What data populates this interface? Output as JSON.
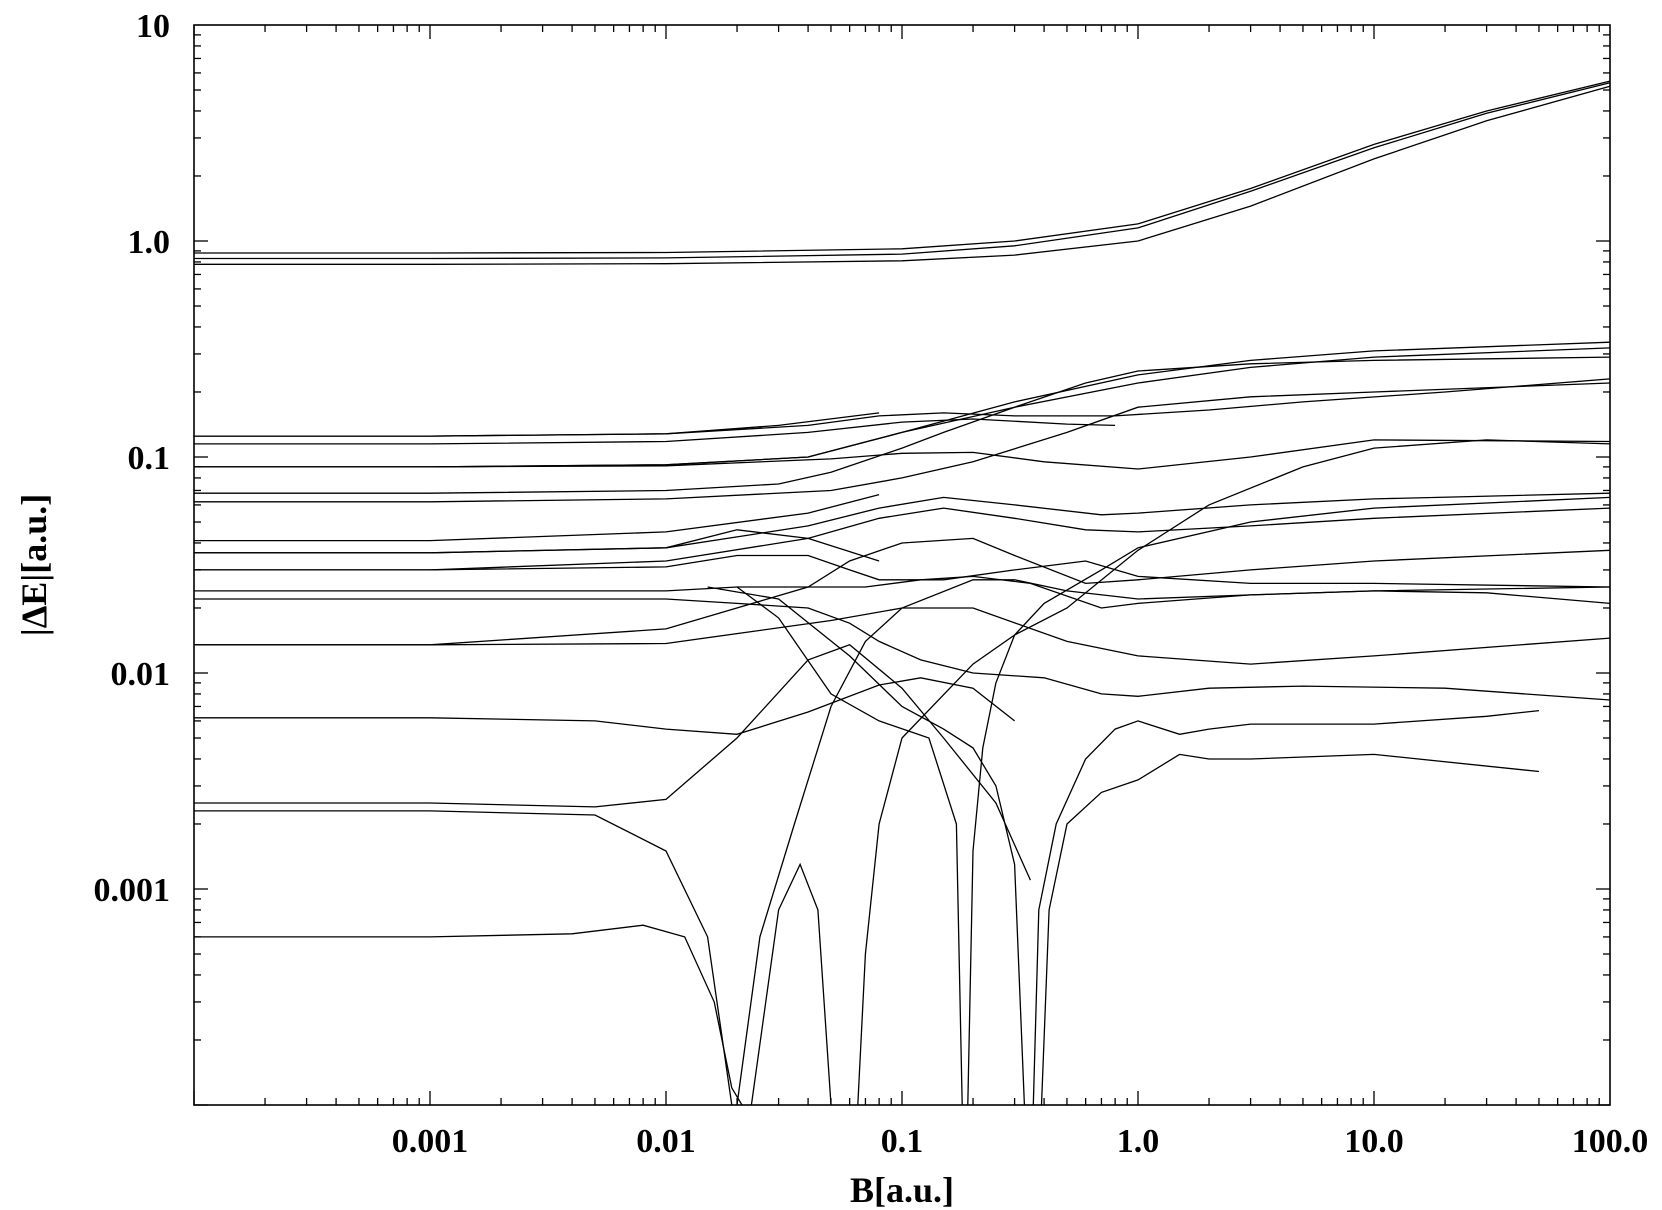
{
  "chart_data": {
    "type": "line",
    "title": "",
    "xlabel": "B[a.u.]",
    "ylabel": "|ΔE|[a.u.]",
    "xscale": "log",
    "yscale": "log",
    "xlim": [
      0.0001,
      100
    ],
    "ylim": [
      0.0001,
      10
    ],
    "x_tick_labels": [
      "0.001",
      "0.01",
      "0.1",
      "1.0",
      "10.0",
      "100.0"
    ],
    "x_tick_values": [
      0.001,
      0.01,
      0.1,
      1,
      10,
      100
    ],
    "y_tick_labels": [
      "0.001",
      "0.01",
      "0.1",
      "1.0",
      "10"
    ],
    "y_tick_values": [
      0.001,
      0.01,
      0.1,
      1,
      10
    ],
    "grid": false,
    "series": [
      {
        "x": [
          0.0001,
          0.001,
          0.01,
          0.1,
          0.3,
          1,
          3,
          10,
          30,
          100
        ],
        "y": [
          0.88,
          0.88,
          0.885,
          0.92,
          1.0,
          1.2,
          1.75,
          2.8,
          4.0,
          5.5
        ]
      },
      {
        "x": [
          0.0001,
          0.001,
          0.01,
          0.1,
          0.3,
          1,
          3,
          10,
          30,
          100
        ],
        "y": [
          0.83,
          0.83,
          0.835,
          0.87,
          0.95,
          1.15,
          1.7,
          2.7,
          3.9,
          5.4
        ]
      },
      {
        "x": [
          0.0001,
          0.001,
          0.01,
          0.1,
          0.3,
          1,
          3,
          10,
          30,
          100
        ],
        "y": [
          0.78,
          0.78,
          0.785,
          0.81,
          0.86,
          1.0,
          1.45,
          2.4,
          3.6,
          5.2
        ]
      },
      {
        "x": [
          0.0001,
          0.001,
          0.01,
          0.03,
          0.08
        ],
        "y": [
          0.125,
          0.125,
          0.128,
          0.14,
          0.16
        ]
      },
      {
        "x": [
          0.0001,
          0.001,
          0.01,
          0.04,
          0.1,
          0.2,
          0.5,
          0.8
        ],
        "y": [
          0.115,
          0.115,
          0.118,
          0.13,
          0.145,
          0.15,
          0.142,
          0.14
        ]
      },
      {
        "x": [
          0.0001,
          0.001,
          0.01,
          0.04,
          0.08,
          0.15,
          0.3,
          0.8,
          2,
          5,
          20,
          100
        ],
        "y": [
          0.125,
          0.125,
          0.128,
          0.14,
          0.155,
          0.16,
          0.155,
          0.155,
          0.165,
          0.18,
          0.2,
          0.23
        ]
      },
      {
        "x": [
          0.0001,
          0.001,
          0.01,
          0.04,
          0.1,
          0.3,
          1,
          3,
          10,
          100
        ],
        "y": [
          0.09,
          0.09,
          0.092,
          0.1,
          0.13,
          0.18,
          0.24,
          0.28,
          0.31,
          0.34
        ]
      },
      {
        "x": [
          0.0001,
          0.001,
          0.01,
          0.04,
          0.1,
          0.3,
          1,
          3,
          10,
          100
        ],
        "y": [
          0.09,
          0.09,
          0.092,
          0.1,
          0.13,
          0.17,
          0.22,
          0.26,
          0.29,
          0.32
        ]
      },
      {
        "x": [
          0.0001,
          0.001,
          0.01,
          0.03,
          0.05,
          0.1,
          0.15,
          0.3,
          0.6,
          1,
          3,
          10,
          100
        ],
        "y": [
          0.068,
          0.068,
          0.07,
          0.075,
          0.085,
          0.11,
          0.13,
          0.17,
          0.22,
          0.25,
          0.27,
          0.28,
          0.29
        ]
      },
      {
        "x": [
          0.0001,
          0.001,
          0.01,
          0.05,
          0.1,
          0.2,
          0.5,
          1,
          3,
          10,
          100
        ],
        "y": [
          0.062,
          0.062,
          0.064,
          0.07,
          0.08,
          0.095,
          0.13,
          0.17,
          0.19,
          0.2,
          0.22
        ]
      },
      {
        "x": [
          0.0001,
          0.001,
          0.01,
          0.05,
          0.1,
          0.2,
          0.4,
          1,
          3,
          10,
          100
        ],
        "y": [
          0.09,
          0.09,
          0.091,
          0.098,
          0.104,
          0.105,
          0.095,
          0.088,
          0.1,
          0.12,
          0.118
        ]
      },
      {
        "x": [
          0.0001,
          0.001,
          0.01,
          0.04,
          0.08
        ],
        "y": [
          0.041,
          0.041,
          0.045,
          0.055,
          0.067
        ]
      },
      {
        "x": [
          0.0001,
          0.001,
          0.01,
          0.04,
          0.08,
          0.15,
          0.3,
          0.7,
          1,
          3,
          10,
          100
        ],
        "y": [
          0.036,
          0.036,
          0.038,
          0.048,
          0.058,
          0.065,
          0.06,
          0.054,
          0.055,
          0.06,
          0.064,
          0.068
        ]
      },
      {
        "x": [
          0.0001,
          0.001,
          0.01,
          0.04,
          0.08,
          0.15,
          0.3,
          0.6,
          1,
          3,
          10,
          100
        ],
        "y": [
          0.03,
          0.03,
          0.033,
          0.042,
          0.052,
          0.058,
          0.052,
          0.046,
          0.045,
          0.048,
          0.052,
          0.058
        ]
      },
      {
        "x": [
          0.0001,
          0.001,
          0.01,
          0.02,
          0.04,
          0.08
        ],
        "y": [
          0.036,
          0.036,
          0.038,
          0.046,
          0.042,
          0.033
        ]
      },
      {
        "x": [
          0.0001,
          0.001,
          0.01,
          0.02,
          0.04,
          0.06,
          0.08,
          0.15,
          0.3,
          0.6,
          1,
          3,
          10,
          100
        ],
        "y": [
          0.03,
          0.03,
          0.031,
          0.035,
          0.035,
          0.03,
          0.027,
          0.027,
          0.03,
          0.033,
          0.028,
          0.026,
          0.026,
          0.025
        ]
      },
      {
        "x": [
          0.0001,
          0.001,
          0.01,
          0.02,
          0.04,
          0.07,
          0.12,
          0.2,
          0.35,
          0.7,
          1,
          3,
          10,
          100
        ],
        "y": [
          0.024,
          0.024,
          0.024,
          0.025,
          0.025,
          0.025,
          0.027,
          0.028,
          0.026,
          0.02,
          0.021,
          0.023,
          0.024,
          0.025
        ]
      },
      {
        "x": [
          0.0001,
          0.001,
          0.01,
          0.04,
          0.06,
          0.1,
          0.2,
          0.3,
          0.6,
          1,
          3,
          10,
          100
        ],
        "y": [
          0.0135,
          0.0135,
          0.016,
          0.025,
          0.033,
          0.04,
          0.042,
          0.035,
          0.026,
          0.027,
          0.03,
          0.033,
          0.037
        ]
      },
      {
        "x": [
          0.0001,
          0.001,
          0.01,
          0.02,
          0.04,
          0.06,
          0.08,
          0.12,
          0.2,
          0.4,
          0.7,
          1,
          2,
          5,
          20,
          100
        ],
        "y": [
          0.022,
          0.022,
          0.022,
          0.021,
          0.02,
          0.017,
          0.014,
          0.0115,
          0.01,
          0.0095,
          0.008,
          0.0078,
          0.0085,
          0.0087,
          0.0085,
          0.0075
        ]
      },
      {
        "x": [
          0.0001,
          0.001,
          0.01,
          0.05,
          0.1,
          0.2,
          0.5,
          1,
          3,
          10,
          100
        ],
        "y": [
          0.0135,
          0.0135,
          0.0137,
          0.0175,
          0.02,
          0.02,
          0.014,
          0.012,
          0.011,
          0.012,
          0.0145
        ]
      },
      {
        "x": [
          0.0001,
          0.001,
          0.005,
          0.01,
          0.02,
          0.04,
          0.08,
          0.12,
          0.2,
          0.3
        ],
        "y": [
          0.0062,
          0.0062,
          0.006,
          0.0055,
          0.0052,
          0.0066,
          0.0088,
          0.0095,
          0.0085,
          0.006
        ]
      },
      {
        "x": [
          0.0001,
          0.001,
          0.005,
          0.01,
          0.02,
          0.04,
          0.06,
          0.1,
          0.15,
          0.25,
          0.35
        ],
        "y": [
          0.0025,
          0.0025,
          0.0024,
          0.0026,
          0.005,
          0.0115,
          0.0135,
          0.0085,
          0.005,
          0.0025,
          0.0011
        ]
      },
      {
        "x": [
          0.0001,
          0.001,
          0.005,
          0.01,
          0.015,
          0.019
        ],
        "y": [
          0.0023,
          0.0023,
          0.0022,
          0.0015,
          0.0006,
          0.0001
        ]
      },
      {
        "x": [
          0.0001,
          0.001,
          0.004,
          0.008,
          0.012,
          0.016,
          0.019,
          0.021
        ],
        "y": [
          0.0006,
          0.0006,
          0.00062,
          0.00068,
          0.0006,
          0.0003,
          0.00012,
          0.0001
        ]
      },
      {
        "x": [
          0.023,
          0.03,
          0.037,
          0.044,
          0.05
        ],
        "y": [
          0.0001,
          0.0008,
          0.0013,
          0.0008,
          0.0001
        ]
      },
      {
        "x": [
          0.02,
          0.025,
          0.035,
          0.05,
          0.07,
          0.1,
          0.2,
          0.3,
          0.5,
          1,
          3,
          10,
          30,
          100
        ],
        "y": [
          0.0001,
          0.0006,
          0.002,
          0.007,
          0.014,
          0.02,
          0.027,
          0.027,
          0.024,
          0.022,
          0.023,
          0.024,
          0.0235,
          0.021
        ]
      },
      {
        "x": [
          0.065,
          0.07,
          0.08,
          0.1,
          0.2,
          0.3,
          0.5,
          1,
          2,
          5,
          10,
          30,
          100
        ],
        "y": [
          0.0001,
          0.0005,
          0.002,
          0.005,
          0.011,
          0.015,
          0.02,
          0.037,
          0.06,
          0.09,
          0.11,
          0.12,
          0.115
        ]
      },
      {
        "x": [
          0.015,
          0.03,
          0.06,
          0.1,
          0.15,
          0.2,
          0.25,
          0.3,
          0.33
        ],
        "y": [
          0.025,
          0.022,
          0.012,
          0.007,
          0.0055,
          0.0045,
          0.003,
          0.0013,
          0.0001
        ]
      },
      {
        "x": [
          0.19,
          0.2,
          0.22,
          0.25,
          0.3,
          0.4,
          0.7,
          1,
          3,
          10,
          100
        ],
        "y": [
          0.0001,
          0.0015,
          0.0045,
          0.009,
          0.015,
          0.021,
          0.03,
          0.038,
          0.05,
          0.058,
          0.065
        ]
      },
      {
        "x": [
          0.18,
          0.17,
          0.13,
          0.08,
          0.05,
          0.03,
          0.02
        ],
        "y": [
          0.0001,
          0.002,
          0.005,
          0.006,
          0.008,
          0.018,
          0.025
        ]
      },
      {
        "x": [
          0.36,
          0.38,
          0.45,
          0.6,
          0.8,
          1,
          1.5,
          2,
          3,
          10,
          30,
          50
        ],
        "y": [
          0.0001,
          0.0008,
          0.002,
          0.004,
          0.0055,
          0.006,
          0.0052,
          0.0055,
          0.0058,
          0.0058,
          0.0063,
          0.0067
        ]
      },
      {
        "x": [
          0.39,
          0.42,
          0.5,
          0.7,
          1,
          1.5,
          2,
          3,
          10,
          50
        ],
        "y": [
          0.0001,
          0.0008,
          0.002,
          0.0028,
          0.0032,
          0.0042,
          0.004,
          0.004,
          0.0042,
          0.0035
        ]
      }
    ]
  }
}
